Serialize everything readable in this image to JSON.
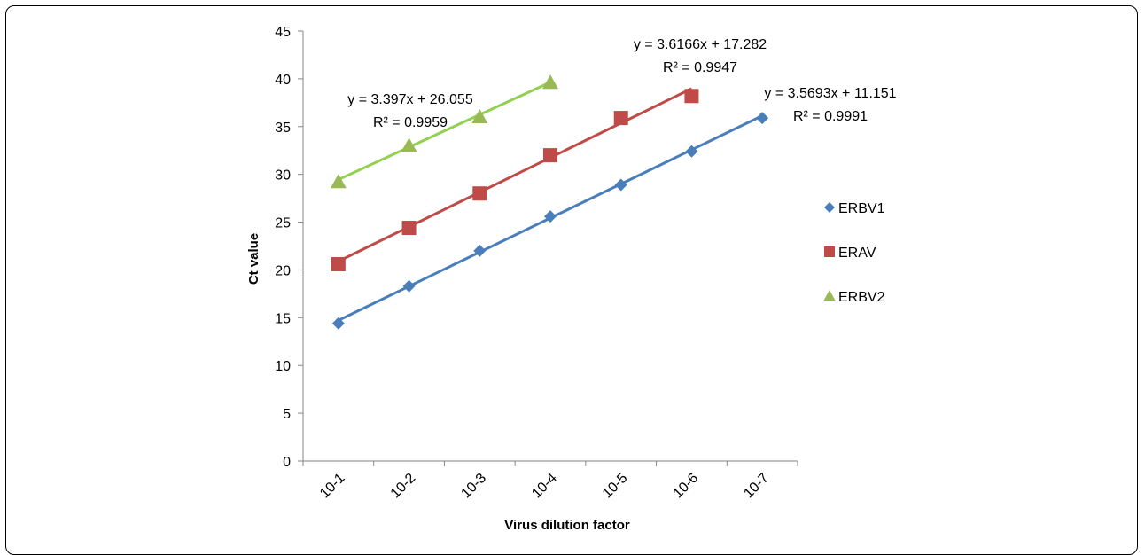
{
  "chart_data": {
    "type": "line",
    "title": "",
    "xlabel": "Virus dilution factor",
    "ylabel": "Ct value",
    "categories": [
      "10-1",
      "10-2",
      "10-3",
      "10-4",
      "10-5",
      "10-6",
      "10-7"
    ],
    "ylim": [
      0,
      45
    ],
    "yticks": [
      0,
      5,
      10,
      15,
      20,
      25,
      30,
      35,
      40,
      45
    ],
    "grid": false,
    "legend_position": "right",
    "series": [
      {
        "name": "ERBV1",
        "marker": "diamond",
        "color": "#4a7ebb",
        "values": [
          14.4,
          18.3,
          22.0,
          25.6,
          28.9,
          32.4,
          35.9
        ],
        "trendline": {
          "equation": "y = 3.5693x + 11.151",
          "r2": "R² = 0.9991",
          "color": "#4a7ebb"
        }
      },
      {
        "name": "ERAV",
        "marker": "square",
        "color": "#be4b48",
        "values": [
          20.6,
          24.4,
          28.0,
          32.0,
          35.9,
          38.2,
          null
        ],
        "trendline": {
          "equation": "y = 3.6166x + 17.282",
          "r2": "R² = 0.9947",
          "color": "#be4b48"
        }
      },
      {
        "name": "ERBV2",
        "marker": "triangle",
        "color": "#98b954",
        "values": [
          29.2,
          33.0,
          36.0,
          39.6,
          null,
          null,
          null
        ],
        "trendline": {
          "equation": "y = 3.397x + 26.055",
          "r2": "R² = 0.9959",
          "color": "#92d050"
        }
      }
    ]
  }
}
